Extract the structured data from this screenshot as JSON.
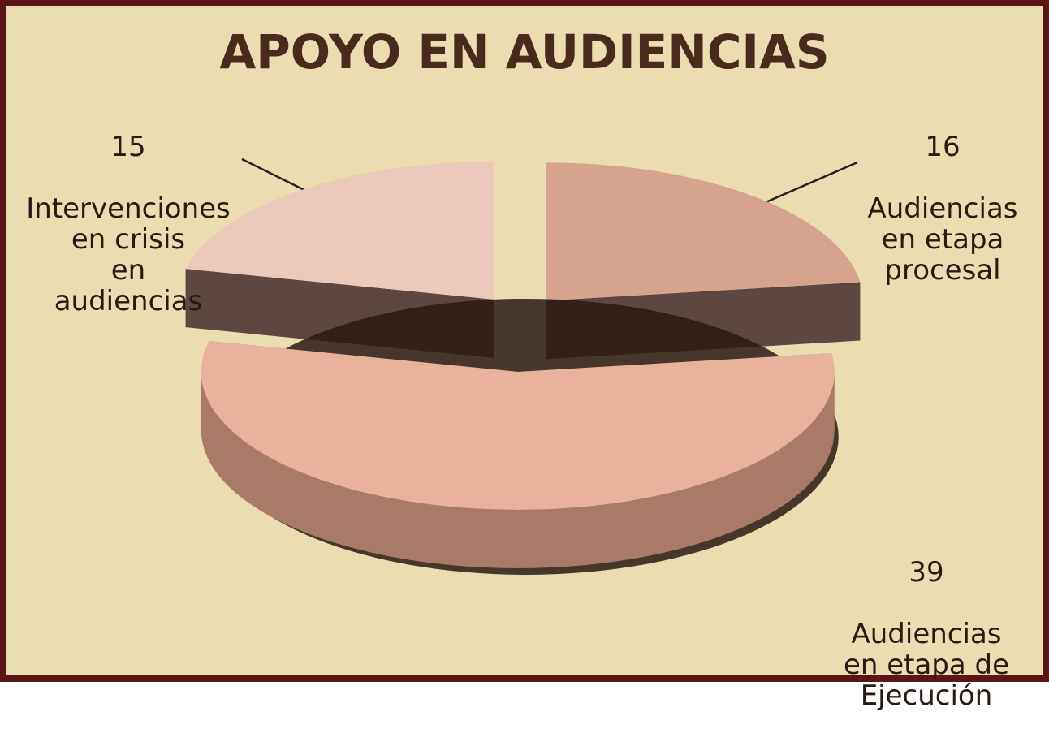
{
  "chart_data": {
    "type": "pie",
    "title": "APOYO EN AUDIENCIAS",
    "categories": [
      "Intervenciones\nen crisis\nen\naudiencias",
      "Audiencias\nen etapa\nprocesal",
      "Audiencias\nen etapa de\nEjecución"
    ],
    "values": [
      15,
      16,
      39
    ],
    "colors": [
      "#ecc9ba",
      "#d6a48e",
      "#e9b29c"
    ]
  }
}
